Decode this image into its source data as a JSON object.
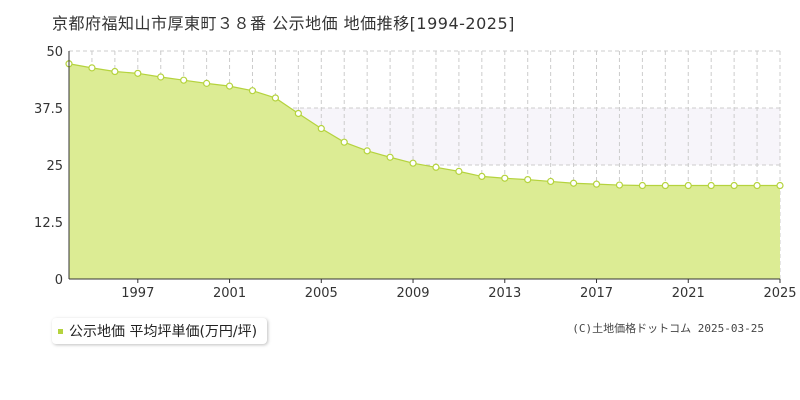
{
  "title": "京都府福知山市厚東町３８番 公示地価 地価推移[1994-2025]",
  "legend": {
    "label": "公示地価 平均坪単価(万円/坪)"
  },
  "credit": "(C)土地価格ドットコム 2025-03-25",
  "colors": {
    "fill": "#dcec94",
    "line": "#b5d33e",
    "marker_fill": "#ffffff",
    "marker_stroke": "#b5d33e",
    "grid": "#cccccc",
    "upper_band": "#f7f5fa"
  },
  "chart_data": {
    "type": "area",
    "title": "京都府福知山市厚東町３８番 公示地価 地価推移[1994-2025]",
    "xlabel": "",
    "ylabel": "",
    "xlim": [
      1994,
      2025
    ],
    "ylim": [
      0,
      50
    ],
    "yticks": [
      0,
      12.5,
      25,
      37.5,
      50
    ],
    "ytick_labels": [
      "0",
      "12.5",
      "25",
      "37.5",
      "50"
    ],
    "xticks": [
      1997,
      2001,
      2005,
      2009,
      2013,
      2017,
      2021,
      2025
    ],
    "grid": true,
    "legend_position": "bottom-left",
    "series": [
      {
        "name": "公示地価 平均坪単価(万円/坪)",
        "x": [
          1994,
          1995,
          1996,
          1997,
          1998,
          1999,
          2000,
          2001,
          2002,
          2003,
          2004,
          2005,
          2006,
          2007,
          2008,
          2009,
          2010,
          2011,
          2012,
          2013,
          2014,
          2015,
          2016,
          2017,
          2018,
          2019,
          2020,
          2021,
          2022,
          2023,
          2024,
          2025
        ],
        "values": [
          47.2,
          46.3,
          45.5,
          45.1,
          44.3,
          43.6,
          42.9,
          42.3,
          41.3,
          39.7,
          36.3,
          33.0,
          30.0,
          28.1,
          26.7,
          25.4,
          24.5,
          23.6,
          22.5,
          22.1,
          21.8,
          21.4,
          21.0,
          20.8,
          20.6,
          20.5,
          20.5,
          20.5,
          20.5,
          20.5,
          20.5,
          20.5
        ]
      }
    ]
  }
}
